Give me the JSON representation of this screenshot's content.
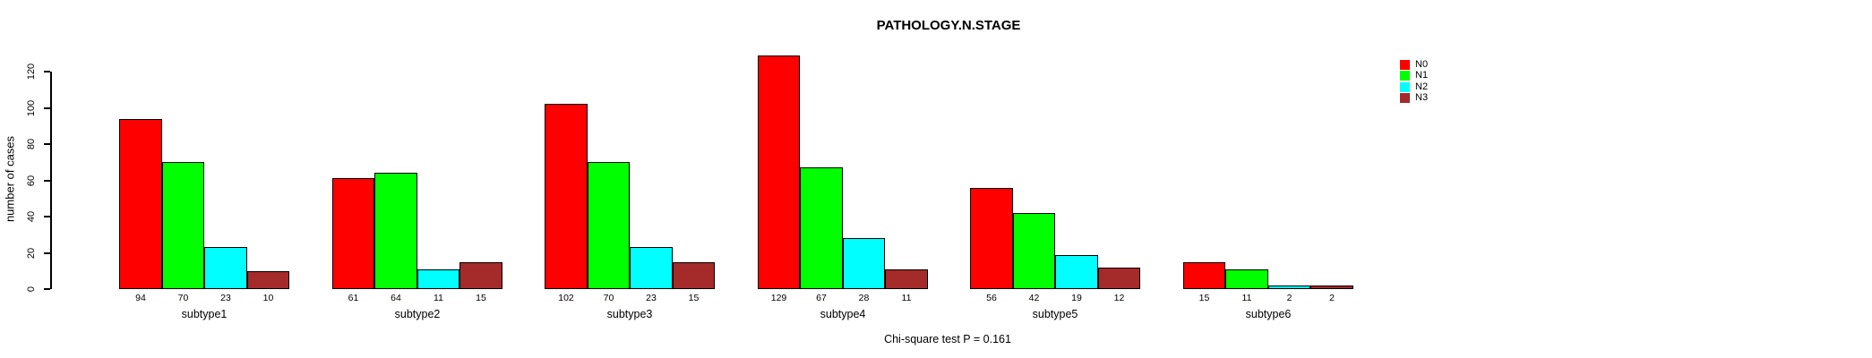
{
  "chart_data": {
    "type": "bar",
    "title": "PATHOLOGY.N.STAGE",
    "subtitle": "Chi-square test P = 0.161",
    "ylabel": "number of cases",
    "xlabel": "",
    "categories": [
      "subtype1",
      "subtype2",
      "subtype3",
      "subtype4",
      "subtype5",
      "subtype6"
    ],
    "series": [
      {
        "name": "N0",
        "color": "#FF0000",
        "values": [
          94,
          61,
          102,
          129,
          56,
          15
        ]
      },
      {
        "name": "N1",
        "color": "#00FF00",
        "values": [
          70,
          64,
          70,
          67,
          42,
          11
        ]
      },
      {
        "name": "N2",
        "color": "#00FFFF",
        "values": [
          23,
          11,
          23,
          28,
          19,
          2
        ]
      },
      {
        "name": "N3",
        "color": "#A52A2A",
        "values": [
          10,
          15,
          15,
          11,
          12,
          2
        ]
      }
    ],
    "yticks": [
      0,
      20,
      40,
      60,
      80,
      100,
      120
    ],
    "ylim": [
      0,
      130
    ],
    "grid": false,
    "legend_position": "top-right",
    "show_value_labels": true,
    "axis_color": "#000000",
    "text_color": "#000000",
    "background_color": "#FFFFFF"
  }
}
